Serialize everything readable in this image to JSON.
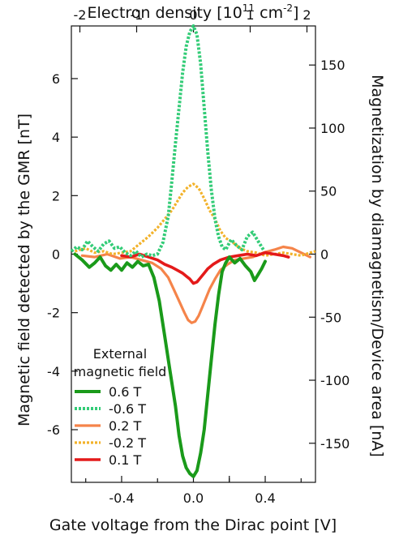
{
  "chart_data": {
    "type": "line",
    "title": "",
    "xlabel": "Gate voltage from the Dirac point [V]",
    "top_xlabel": "Electron density [10",
    "top_xlabel_exp": "11",
    "top_xlabel_unit": " cm",
    "top_xlabel_unit_exp": "-2",
    "top_xlabel_end": "]",
    "ylabel": "Magnetic field detected by the GMR [nT]",
    "y2label": "Magnetization by diamagnetism/Device area [nA]",
    "xlim": [
      -0.68,
      0.68
    ],
    "ylim": [
      -7.8,
      7.8
    ],
    "top_xlim": [
      -2.15,
      2.15
    ],
    "y2lim": [
      -181,
      181
    ],
    "x_ticks": [
      -0.4,
      0.0,
      0.2,
      0.4
    ],
    "x_tick_labels": [
      "-0.4",
      "0.0",
      "",
      "0.4"
    ],
    "x_minor_ticks": [
      -0.6,
      -0.2,
      0.2,
      0.6
    ],
    "top_ticks": [
      -2,
      -1,
      0,
      1,
      2
    ],
    "y_ticks": [
      -6,
      -4,
      -2,
      0,
      2,
      4,
      6
    ],
    "y2_ticks": [
      -150,
      -100,
      -50,
      0,
      50,
      100,
      150
    ],
    "legend_placement": "lower-left",
    "legend_title": [
      "External",
      "magnetic field"
    ],
    "series": [
      {
        "name": "0.6 T",
        "color": "#1a9a1a",
        "dash": "solid",
        "width": 4,
        "x": [
          -0.66,
          -0.62,
          -0.58,
          -0.55,
          -0.52,
          -0.49,
          -0.46,
          -0.43,
          -0.4,
          -0.37,
          -0.34,
          -0.31,
          -0.28,
          -0.25,
          -0.22,
          -0.19,
          -0.16,
          -0.13,
          -0.1,
          -0.08,
          -0.06,
          -0.04,
          -0.02,
          0.0,
          0.02,
          0.04,
          0.06,
          0.08,
          0.1,
          0.12,
          0.14,
          0.16,
          0.18,
          0.2,
          0.23,
          0.26,
          0.29,
          0.32,
          0.34,
          0.36,
          0.38,
          0.4
        ],
        "y": [
          0,
          -0.2,
          -0.45,
          -0.3,
          -0.1,
          -0.4,
          -0.55,
          -0.35,
          -0.55,
          -0.3,
          -0.45,
          -0.25,
          -0.4,
          -0.35,
          -0.8,
          -1.6,
          -2.8,
          -4.0,
          -5.2,
          -6.2,
          -6.9,
          -7.3,
          -7.5,
          -7.6,
          -7.4,
          -6.8,
          -6.0,
          -4.8,
          -3.6,
          -2.4,
          -1.4,
          -0.6,
          -0.3,
          -0.1,
          -0.3,
          -0.15,
          -0.4,
          -0.6,
          -0.9,
          -0.7,
          -0.5,
          -0.25
        ]
      },
      {
        "name": "-0.6 T",
        "color": "#33cc77",
        "dash": "dotted",
        "width": 4,
        "x": [
          -0.68,
          -0.65,
          -0.62,
          -0.59,
          -0.56,
          -0.53,
          -0.5,
          -0.47,
          -0.44,
          -0.41,
          -0.38,
          -0.35,
          -0.32,
          -0.29,
          -0.26,
          -0.23,
          -0.2,
          -0.17,
          -0.14,
          -0.12,
          -0.1,
          -0.08,
          -0.06,
          -0.04,
          -0.02,
          0.0,
          0.02,
          0.04,
          0.06,
          0.08,
          0.1,
          0.12,
          0.14,
          0.16,
          0.18,
          0.21,
          0.24,
          0.27,
          0.3,
          0.33,
          0.36,
          0.39
        ],
        "y": [
          0.1,
          0.25,
          0.15,
          0.45,
          0.25,
          0.1,
          0.35,
          0.45,
          0.2,
          0.25,
          0.05,
          -0.05,
          0.1,
          -0.1,
          0.0,
          -0.05,
          0.0,
          0.4,
          1.3,
          2.5,
          3.8,
          5.0,
          6.2,
          7.1,
          7.6,
          7.8,
          7.5,
          6.5,
          5.0,
          3.5,
          2.2,
          1.2,
          0.6,
          0.25,
          0.15,
          0.5,
          0.3,
          0.15,
          0.6,
          0.75,
          0.45,
          0.15
        ]
      },
      {
        "name": "0.2 T",
        "color": "#f5844a",
        "dash": "solid",
        "width": 3.2,
        "x": [
          -0.62,
          -0.55,
          -0.48,
          -0.41,
          -0.35,
          -0.29,
          -0.23,
          -0.18,
          -0.14,
          -0.11,
          -0.08,
          -0.05,
          -0.03,
          -0.01,
          0.01,
          0.03,
          0.05,
          0.07,
          0.09,
          0.12,
          0.15,
          0.19,
          0.23,
          0.28,
          0.33,
          0.39,
          0.45,
          0.5,
          0.55,
          0.6,
          0.65
        ],
        "y": [
          -0.05,
          -0.1,
          0.0,
          -0.15,
          -0.1,
          -0.2,
          -0.3,
          -0.5,
          -0.8,
          -1.2,
          -1.6,
          -2.0,
          -2.25,
          -2.35,
          -2.3,
          -2.1,
          -1.8,
          -1.5,
          -1.2,
          -0.85,
          -0.55,
          -0.35,
          -0.2,
          -0.15,
          -0.1,
          0.05,
          0.15,
          0.25,
          0.2,
          0.05,
          -0.1
        ]
      },
      {
        "name": "-0.2 T",
        "color": "#f2b22a",
        "dash": "dotted",
        "width": 3.2,
        "x": [
          -0.66,
          -0.6,
          -0.55,
          -0.5,
          -0.45,
          -0.4,
          -0.35,
          -0.3,
          -0.25,
          -0.2,
          -0.16,
          -0.12,
          -0.09,
          -0.06,
          -0.03,
          0.0,
          0.03,
          0.06,
          0.09,
          0.12,
          0.15,
          0.18,
          0.22,
          0.26,
          0.3,
          0.35,
          0.4,
          0.45,
          0.5,
          0.55,
          0.6,
          0.65,
          0.68
        ],
        "y": [
          0.1,
          0.2,
          0.05,
          0.1,
          0.0,
          0.05,
          0.1,
          0.35,
          0.6,
          0.9,
          1.2,
          1.5,
          1.8,
          2.1,
          2.3,
          2.4,
          2.25,
          1.9,
          1.5,
          1.2,
          0.8,
          0.55,
          0.4,
          0.2,
          0.1,
          0.05,
          -0.05,
          0.0,
          0.05,
          0.0,
          -0.05,
          0.05,
          0.1
        ]
      },
      {
        "name": "0.1 T",
        "color": "#e41a1a",
        "dash": "solid",
        "width": 3.6,
        "x": [
          -0.4,
          -0.35,
          -0.3,
          -0.25,
          -0.2,
          -0.16,
          -0.12,
          -0.09,
          -0.06,
          -0.04,
          -0.02,
          0.0,
          0.02,
          0.04,
          0.06,
          0.08,
          0.11,
          0.15,
          0.2,
          0.25,
          0.3,
          0.35,
          0.4,
          0.45,
          0.5,
          0.53
        ],
        "y": [
          -0.05,
          -0.1,
          0.0,
          -0.1,
          -0.2,
          -0.35,
          -0.45,
          -0.55,
          -0.65,
          -0.75,
          -0.85,
          -1.0,
          -0.95,
          -0.8,
          -0.65,
          -0.5,
          -0.35,
          -0.2,
          -0.1,
          -0.05,
          0.0,
          -0.05,
          0.05,
          0.0,
          -0.05,
          -0.1
        ]
      }
    ]
  }
}
